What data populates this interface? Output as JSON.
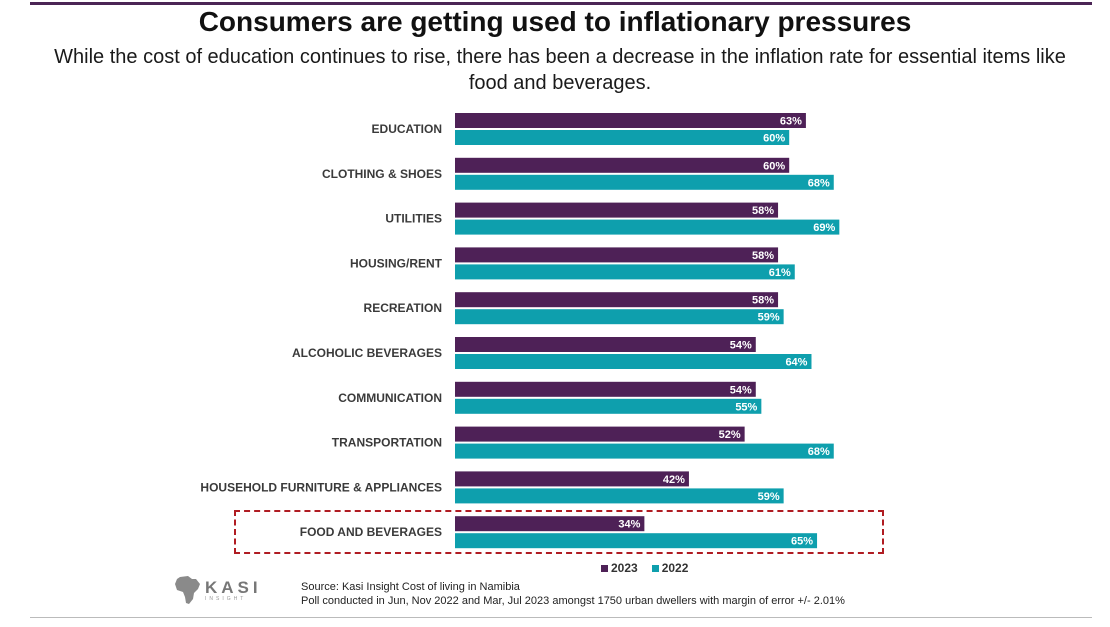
{
  "header": {
    "title": "Consumers are getting used to inflationary pressures",
    "subtitle": "While the cost of education continues to rise, there has been a decrease in the inflation rate for essential items like food and beverages."
  },
  "colors": {
    "series_2023": "#4e2157",
    "series_2022": "#0e9fad",
    "highlight": "#b01c22",
    "rule": "#4b2555"
  },
  "chart_data": {
    "type": "bar",
    "orientation": "horizontal",
    "categories": [
      "EDUCATION",
      "CLOTHING & SHOES",
      "UTILITIES",
      "HOUSING/RENT",
      "RECREATION",
      "ALCOHOLIC BEVERAGES",
      "COMMUNICATION",
      "TRANSPORTATION",
      "HOUSEHOLD FURNITURE & APPLIANCES",
      "FOOD AND BEVERAGES"
    ],
    "series": [
      {
        "name": "2023",
        "values": [
          63,
          60,
          58,
          58,
          58,
          54,
          54,
          52,
          42,
          34
        ],
        "labels": [
          "63%",
          "60%",
          "58%",
          "58%",
          "58%",
          "54%",
          "54%",
          "52%",
          "42%",
          "34%"
        ]
      },
      {
        "name": "2022",
        "values": [
          60,
          68,
          69,
          61,
          59,
          64,
          55,
          68,
          59,
          65
        ],
        "labels": [
          "60%",
          "68%",
          "69%",
          "61%",
          "59%",
          "64%",
          "55%",
          "68%",
          "59%",
          "65%"
        ]
      }
    ],
    "value_unit": "%",
    "highlighted_category": "FOOD AND BEVERAGES",
    "legend_placement": "bottom",
    "grid": false
  },
  "legend": {
    "items": [
      {
        "label": "2023"
      },
      {
        "label": "2022"
      }
    ]
  },
  "logo": {
    "text": "KASI",
    "tagline": "INSIGHT"
  },
  "footer": {
    "source": "Source: Kasi Insight Cost of living in Namibia",
    "note": "Poll conducted in Jun, Nov 2022 and Mar, Jul 2023 amongst 1750 urban dwellers with margin of error +/- 2.01%"
  }
}
